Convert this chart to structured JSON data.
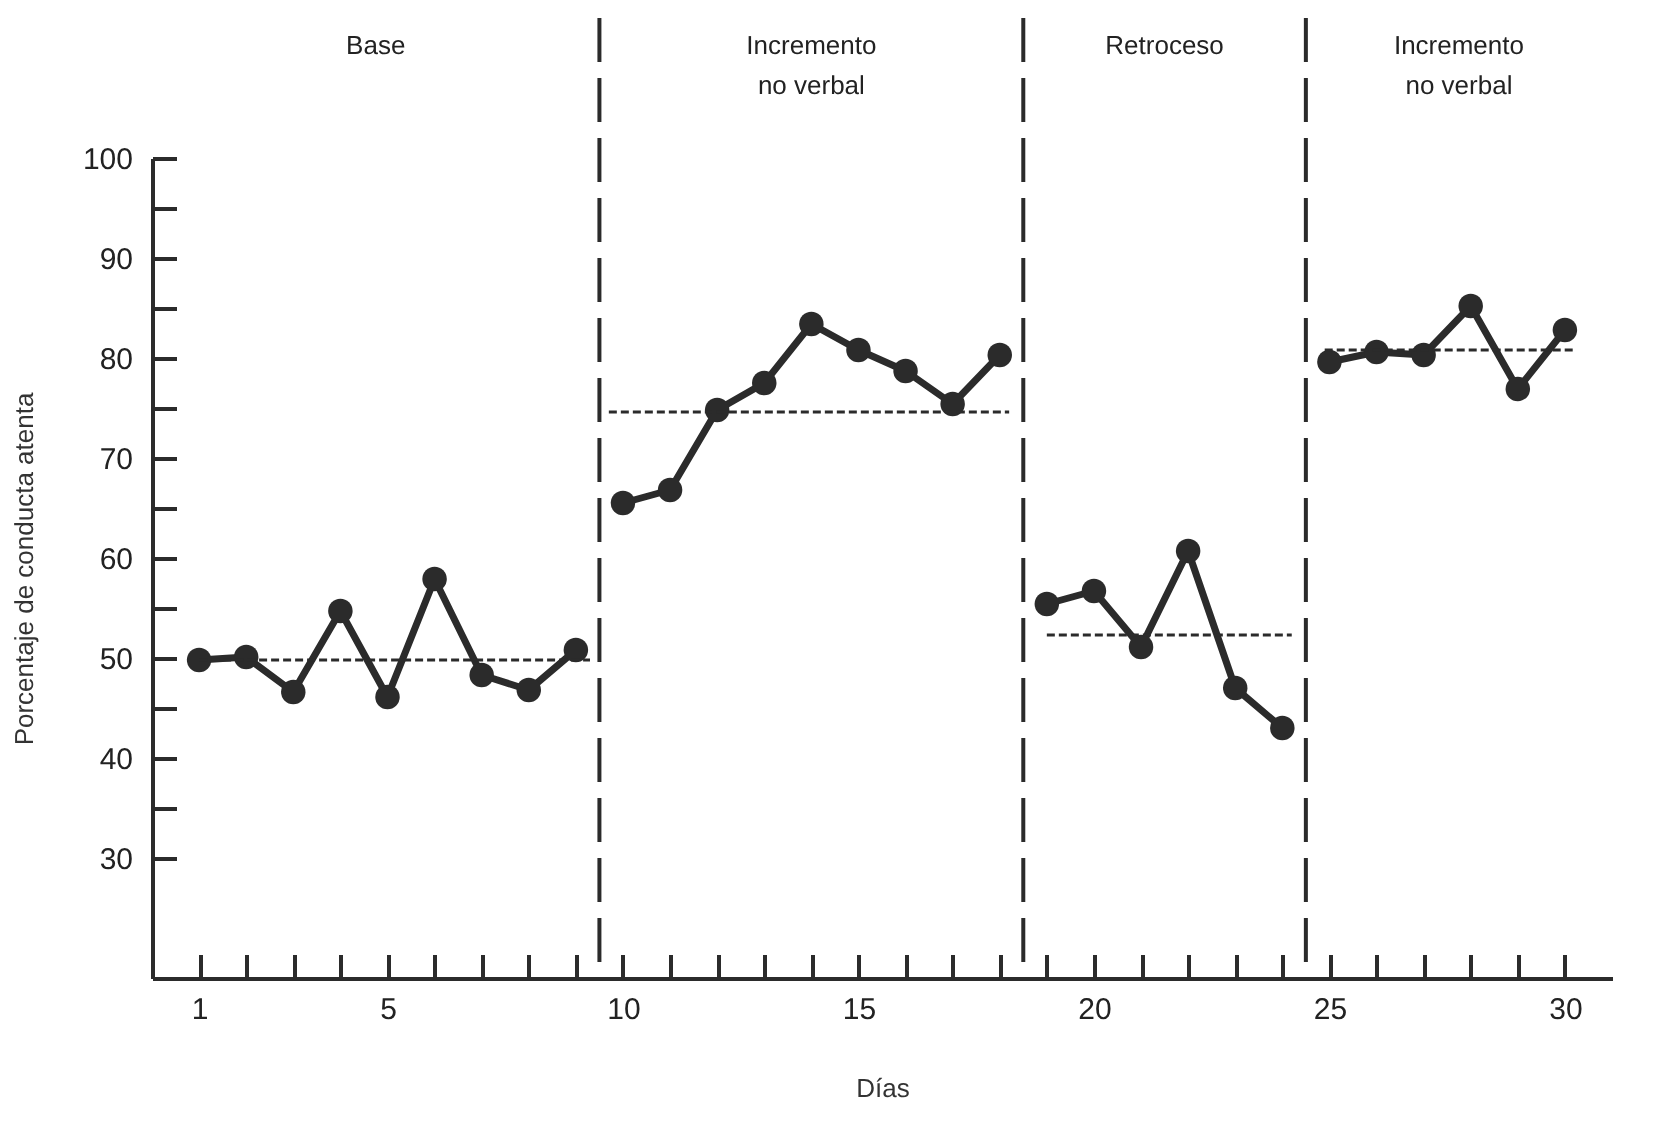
{
  "chart_data": {
    "type": "line",
    "xlabel": "Días",
    "ylabel": "Porcentaje de conducta atenta",
    "annotations": [
      "Base",
      "Incremento\nno verbal",
      "Retroceso",
      "Incremento\nno verbal"
    ],
    "series": [
      {
        "color": "#2b2b2b",
        "marker": "circle",
        "x": [
          1,
          2,
          3,
          4,
          5,
          6,
          7,
          8,
          9
        ],
        "values": [
          49.8,
          50.1,
          46.6,
          54.7,
          46.1,
          57.9,
          48.3,
          46.8,
          50.8
        ]
      },
      {
        "color": "#2b2b2b",
        "marker": "circle",
        "x": [
          10,
          11,
          12,
          13,
          14,
          15,
          16,
          17,
          18
        ],
        "values": [
          65.5,
          66.8,
          74.8,
          77.5,
          83.4,
          80.8,
          78.7,
          75.4,
          80.3
        ]
      },
      {
        "color": "#2b2b2b",
        "marker": "circle",
        "x": [
          19,
          20,
          21,
          22,
          23,
          24
        ],
        "values": [
          55.4,
          56.7,
          51.1,
          60.7,
          47.0,
          43.0
        ]
      },
      {
        "color": "#2b2b2b",
        "marker": "circle",
        "x": [
          25,
          26,
          27,
          28,
          29,
          30
        ],
        "values": [
          79.6,
          80.6,
          80.3,
          85.2,
          76.9,
          82.8
        ]
      },
      {
        "color": "#2b2b2b",
        "marker": "none",
        "line_style": "dashed",
        "x": [
          1,
          9.3
        ],
        "values": [
          49.8,
          49.8
        ]
      },
      {
        "color": "#2b2b2b",
        "marker": "none",
        "line_style": "dashed",
        "x": [
          9.7,
          18.2
        ],
        "values": [
          74.6,
          74.6
        ]
      },
      {
        "color": "#2b2b2b",
        "marker": "none",
        "line_style": "dashed",
        "x": [
          19,
          24.2
        ],
        "values": [
          52.3,
          52.3
        ]
      },
      {
        "color": "#2b2b2b",
        "marker": "none",
        "line_style": "dashed",
        "x": [
          24.9,
          30.2
        ],
        "values": [
          80.8,
          80.8
        ]
      }
    ],
    "ref_lines": [
      {
        "axis": "x",
        "value": 9.5,
        "line_style": "dashed",
        "color": "#2b2b2b"
      },
      {
        "axis": "x",
        "value": 18.5,
        "line_style": "dashed",
        "color": "#2b2b2b"
      },
      {
        "axis": "x",
        "value": 24.5,
        "line_style": "dashed",
        "color": "#2b2b2b"
      }
    ],
    "xlim": [
      0,
      31
    ],
    "ylim": [
      18,
      100
    ],
    "xticks": [
      1,
      {
        "value": 2,
        "label": null
      },
      {
        "value": 3,
        "label": null
      },
      {
        "value": 4,
        "label": null
      },
      5,
      {
        "value": 6,
        "label": null
      },
      {
        "value": 7,
        "label": null
      },
      {
        "value": 8,
        "label": null
      },
      {
        "value": 9,
        "label": null
      },
      10,
      {
        "value": 11,
        "label": null
      },
      {
        "value": 12,
        "label": null
      },
      {
        "value": 13,
        "label": null
      },
      {
        "value": 14,
        "label": null
      },
      15,
      {
        "value": 16,
        "label": null
      },
      {
        "value": 17,
        "label": null
      },
      {
        "value": 18,
        "label": null
      },
      {
        "value": 19,
        "label": null
      },
      20,
      {
        "value": 21,
        "label": null
      },
      {
        "value": 22,
        "label": null
      },
      {
        "value": 23,
        "label": null
      },
      {
        "value": 24,
        "label": null
      },
      25,
      {
        "value": 26,
        "label": null
      },
      {
        "value": 27,
        "label": null
      },
      {
        "value": 28,
        "label": null
      },
      {
        "value": 29,
        "label": null
      },
      30
    ],
    "yticks": [
      30,
      {
        "value": 35,
        "label": null
      },
      40,
      {
        "value": 45,
        "label": null
      },
      50,
      {
        "value": 55,
        "label": null
      },
      60,
      {
        "value": 65,
        "label": null
      },
      70,
      {
        "value": 75,
        "label": null
      },
      80,
      {
        "value": 85,
        "label": null
      },
      90,
      {
        "value": 95,
        "label": null
      },
      100
    ],
    "grid": false
  }
}
